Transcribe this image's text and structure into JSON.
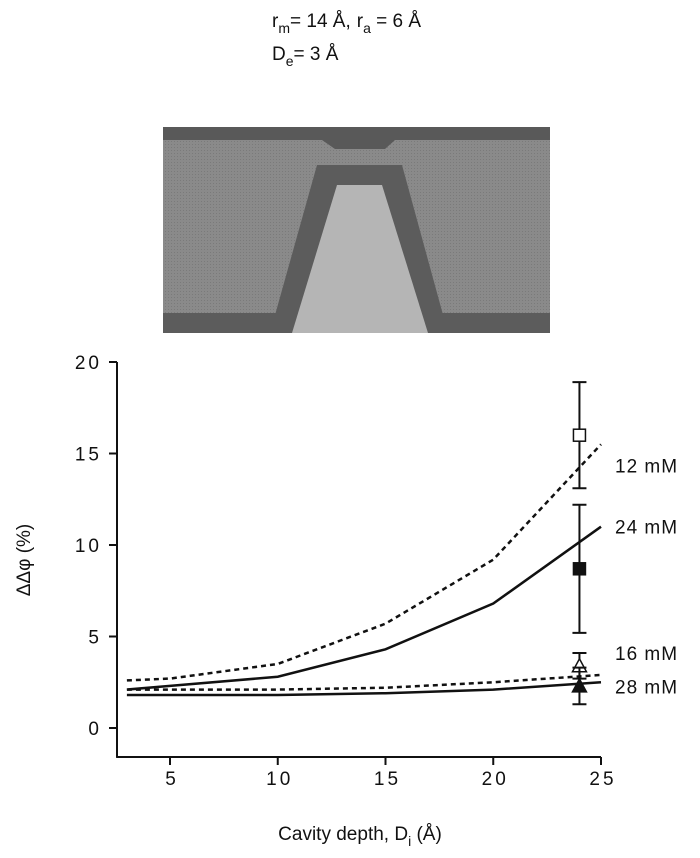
{
  "chart_data": {
    "type": "line",
    "params": [
      {
        "symbol": "r",
        "sub": "m",
        "text": "= 14 Å,"
      },
      {
        "symbol": "r",
        "sub": "a",
        "text": " = 6 Å"
      },
      {
        "symbol": "D",
        "sub": "e",
        "text": "= 3 Å"
      }
    ],
    "x_label": "Cavity depth, D",
    "x_label_sub": "i",
    "x_label_end": " (Å)",
    "y_label": "ΔΔφ (%)",
    "x": [
      3,
      5,
      10,
      15,
      20,
      25
    ],
    "series": [
      {
        "name": "12 mM",
        "color": "#111111",
        "dashed": true,
        "values": [
          2.6,
          2.7,
          3.5,
          5.7,
          9.2,
          15.5
        ],
        "marker": "open-square",
        "point_x": 24,
        "point_value": 16.0,
        "point_error": 2.9
      },
      {
        "name": "24 mM",
        "color": "#111111",
        "dashed": false,
        "values": [
          2.1,
          2.3,
          2.8,
          4.3,
          6.8,
          11.0
        ],
        "marker": "filled-square",
        "point_x": 24,
        "point_value": 8.7,
        "point_error": 3.5
      },
      {
        "name": "16 mM",
        "color": "#111111",
        "dashed": true,
        "values": [
          2.1,
          2.1,
          2.1,
          2.2,
          2.5,
          2.9
        ],
        "marker": "open-triangle",
        "point_x": 24,
        "point_value": 3.4,
        "point_error": 0.7
      },
      {
        "name": "28 mM",
        "color": "#111111",
        "dashed": false,
        "values": [
          1.8,
          1.8,
          1.8,
          1.9,
          2.1,
          2.5
        ],
        "marker": "filled-triangle",
        "point_x": 24,
        "point_value": 2.3,
        "point_error": 1.0
      }
    ],
    "xlim": [
      2.5,
      25
    ],
    "xticks": [
      5,
      10,
      15,
      20,
      25
    ],
    "ylim": [
      -1.6,
      20
    ],
    "yticks": [
      0,
      5,
      10,
      15,
      20
    ]
  }
}
